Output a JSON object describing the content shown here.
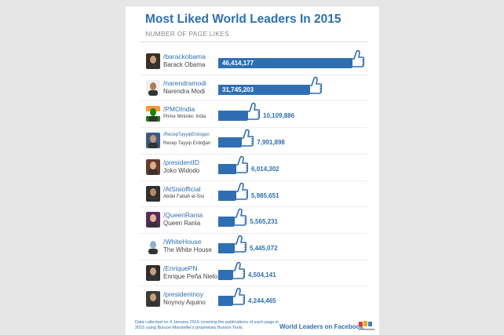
{
  "chart_data": {
    "type": "bar",
    "title": "Most Liked World Leaders In 2015",
    "subtitle": "NUMBER OF PAGE LIKES",
    "categories": [
      "/barackobama",
      "/narendramodi",
      "/PMOIndia",
      "/RecepTayyipErdogan",
      "/presidentID",
      "/AlSisiofficial",
      "/QueenRania",
      "/WhiteHouse",
      "/EnriquePN",
      "/presidentnoy"
    ],
    "names": [
      "Barack Obama",
      "Narendra Modi",
      "Prime Minister, India",
      "Recep Tayyip Erdoğan",
      "Joko Widodo",
      "Abdel Fattah el-Sisi",
      "Queen Rania",
      "The White House",
      "Enrique Peña Nieto",
      "Noynoy Aquino"
    ],
    "values": [
      46414177,
      31745203,
      10109886,
      7991898,
      6014302,
      5985651,
      5565231,
      5445072,
      4504141,
      4244465
    ],
    "labels": [
      "46,414,177",
      "31,745,203",
      "10,109,886",
      "7,991,898",
      "6,014,302",
      "5,985,651",
      "5,565,231",
      "5,445,072",
      "4,504,141",
      "4,244,465"
    ],
    "bar_color": "#2e6fb3",
    "grid": false
  },
  "footer": {
    "note": "Data collected on 4 January 2016 covering the publications of each page in 2015 using  Burson-Marsteller's proprietary Burson Tools.",
    "brand": "World Leaders on Facebook",
    "logo_text": "Burson-Marsteller"
  }
}
